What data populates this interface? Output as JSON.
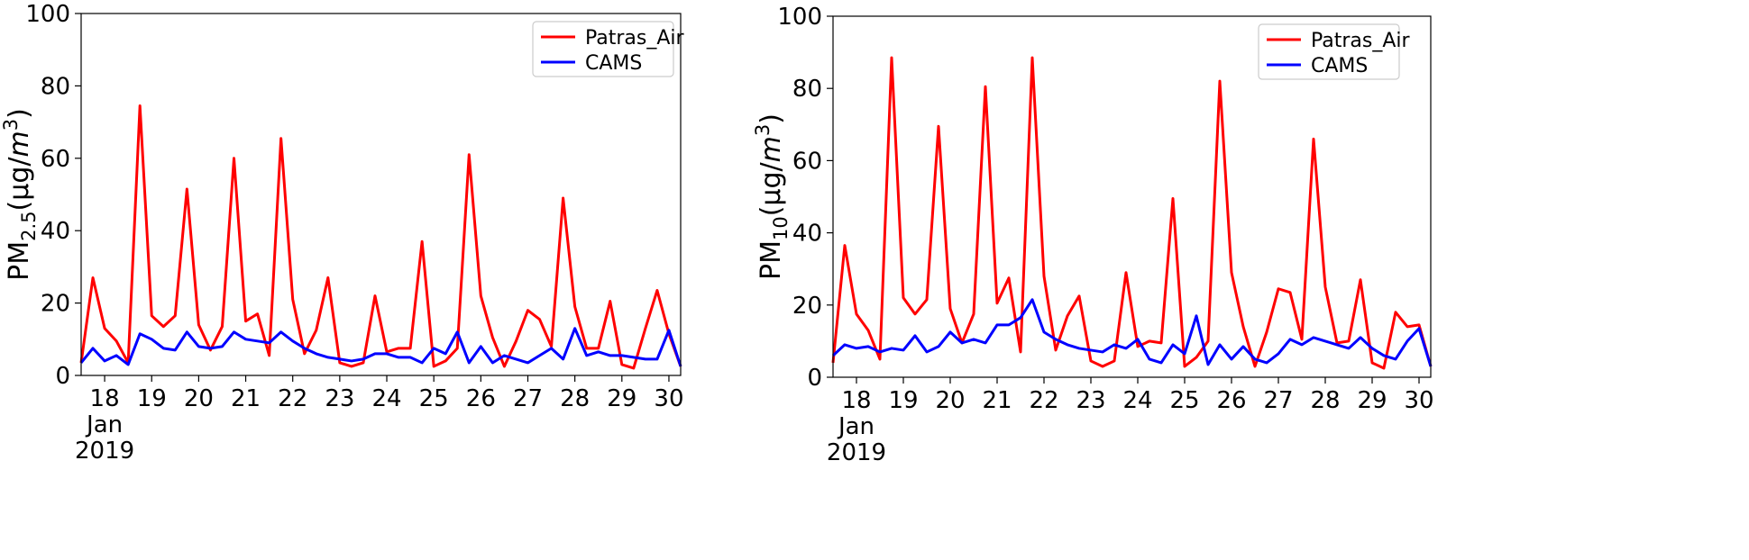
{
  "chart_data": [
    {
      "type": "line",
      "title": "",
      "ylabel": {
        "base": "PM",
        "sub": "2.5",
        "unit_open": "(μg/",
        "unit_var": "m",
        "unit_sup": "3",
        "unit_close": ")"
      },
      "xlabel": "",
      "ylim": [
        0,
        100
      ],
      "yticks": [
        0,
        20,
        40,
        60,
        80,
        100
      ],
      "xlim": [
        17.5,
        30.25
      ],
      "xticks": [
        {
          "x": 18,
          "label": "18",
          "extra": [
            "Jan",
            "2019"
          ]
        },
        {
          "x": 19,
          "label": "19"
        },
        {
          "x": 20,
          "label": "20"
        },
        {
          "x": 21,
          "label": "21"
        },
        {
          "x": 22,
          "label": "22"
        },
        {
          "x": 23,
          "label": "23"
        },
        {
          "x": 24,
          "label": "24"
        },
        {
          "x": 25,
          "label": "25"
        },
        {
          "x": 26,
          "label": "26"
        },
        {
          "x": 27,
          "label": "27"
        },
        {
          "x": 28,
          "label": "28"
        },
        {
          "x": 29,
          "label": "29"
        },
        {
          "x": 30,
          "label": "30"
        }
      ],
      "legend_position": "top-right",
      "grid": false,
      "series": [
        {
          "name": "Patras_Air",
          "color": "#ff0000",
          "points": [
            [
              17.5,
              3.5
            ],
            [
              17.75,
              27.0
            ],
            [
              18.0,
              13.0
            ],
            [
              18.25,
              9.5
            ],
            [
              18.5,
              3.5
            ],
            [
              18.75,
              74.5
            ],
            [
              19.0,
              16.5
            ],
            [
              19.25,
              13.5
            ],
            [
              19.5,
              16.5
            ],
            [
              19.75,
              51.5
            ],
            [
              20.0,
              14.0
            ],
            [
              20.25,
              7.0
            ],
            [
              20.5,
              13.5
            ],
            [
              20.75,
              60.0
            ],
            [
              21.0,
              15.0
            ],
            [
              21.25,
              17.0
            ],
            [
              21.5,
              5.5
            ],
            [
              21.75,
              65.5
            ],
            [
              22.0,
              21.0
            ],
            [
              22.25,
              6.0
            ],
            [
              22.5,
              12.5
            ],
            [
              22.75,
              27.0
            ],
            [
              23.0,
              3.5
            ],
            [
              23.25,
              2.5
            ],
            [
              23.5,
              3.5
            ],
            [
              23.75,
              22.0
            ],
            [
              24.0,
              6.5
            ],
            [
              24.25,
              7.5
            ],
            [
              24.5,
              7.5
            ],
            [
              24.75,
              37.0
            ],
            [
              25.0,
              2.5
            ],
            [
              25.25,
              4.0
            ],
            [
              25.5,
              7.5
            ],
            [
              25.75,
              61.0
            ],
            [
              26.0,
              22.0
            ],
            [
              26.25,
              10.5
            ],
            [
              26.5,
              2.5
            ],
            [
              26.75,
              9.5
            ],
            [
              27.0,
              18.0
            ],
            [
              27.25,
              15.5
            ],
            [
              27.5,
              8.0
            ],
            [
              27.75,
              49.0
            ],
            [
              28.0,
              19.0
            ],
            [
              28.25,
              7.5
            ],
            [
              28.5,
              7.5
            ],
            [
              28.75,
              20.5
            ],
            [
              29.0,
              3.0
            ],
            [
              29.25,
              2.0
            ],
            [
              29.5,
              13.0
            ],
            [
              29.75,
              23.5
            ],
            [
              30.0,
              11.5
            ],
            [
              30.25,
              2.5
            ]
          ]
        },
        {
          "name": "CAMS",
          "color": "#0000ff",
          "points": [
            [
              17.5,
              3.5
            ],
            [
              17.75,
              7.5
            ],
            [
              18.0,
              4.0
            ],
            [
              18.25,
              5.5
            ],
            [
              18.5,
              3.0
            ],
            [
              18.75,
              11.5
            ],
            [
              19.0,
              10.0
            ],
            [
              19.25,
              7.5
            ],
            [
              19.5,
              7.0
            ],
            [
              19.75,
              12.0
            ],
            [
              20.0,
              8.0
            ],
            [
              20.25,
              7.5
            ],
            [
              20.5,
              8.0
            ],
            [
              20.75,
              12.0
            ],
            [
              21.0,
              10.0
            ],
            [
              21.25,
              9.5
            ],
            [
              21.5,
              9.0
            ],
            [
              21.75,
              12.0
            ],
            [
              22.0,
              9.5
            ],
            [
              22.25,
              7.5
            ],
            [
              22.5,
              6.0
            ],
            [
              22.75,
              5.0
            ],
            [
              23.0,
              4.5
            ],
            [
              23.25,
              4.0
            ],
            [
              23.5,
              4.5
            ],
            [
              23.75,
              6.0
            ],
            [
              24.0,
              6.0
            ],
            [
              24.25,
              5.0
            ],
            [
              24.5,
              5.0
            ],
            [
              24.75,
              3.5
            ],
            [
              25.0,
              7.5
            ],
            [
              25.25,
              6.0
            ],
            [
              25.5,
              12.0
            ],
            [
              25.75,
              3.5
            ],
            [
              26.0,
              8.0
            ],
            [
              26.25,
              3.5
            ],
            [
              26.5,
              5.5
            ],
            [
              26.75,
              4.5
            ],
            [
              27.0,
              3.5
            ],
            [
              27.25,
              5.5
            ],
            [
              27.5,
              7.5
            ],
            [
              27.75,
              4.5
            ],
            [
              28.0,
              13.0
            ],
            [
              28.25,
              5.5
            ],
            [
              28.5,
              6.5
            ],
            [
              28.75,
              5.5
            ],
            [
              29.0,
              5.5
            ],
            [
              29.25,
              5.0
            ],
            [
              29.5,
              4.5
            ],
            [
              29.75,
              4.5
            ],
            [
              30.0,
              12.5
            ],
            [
              30.25,
              2.5
            ]
          ]
        }
      ]
    },
    {
      "type": "line",
      "title": "",
      "ylabel": {
        "base": "PM",
        "sub": "10",
        "unit_open": "(μg/",
        "unit_var": "m",
        "unit_sup": "3",
        "unit_close": ")"
      },
      "xlabel": "",
      "ylim": [
        0,
        100
      ],
      "yticks": [
        0,
        20,
        40,
        60,
        80,
        100
      ],
      "xlim": [
        17.5,
        30.25
      ],
      "xticks": [
        {
          "x": 18,
          "label": "18",
          "extra": [
            "Jan",
            "2019"
          ]
        },
        {
          "x": 19,
          "label": "19"
        },
        {
          "x": 20,
          "label": "20"
        },
        {
          "x": 21,
          "label": "21"
        },
        {
          "x": 22,
          "label": "22"
        },
        {
          "x": 23,
          "label": "23"
        },
        {
          "x": 24,
          "label": "24"
        },
        {
          "x": 25,
          "label": "25"
        },
        {
          "x": 26,
          "label": "26"
        },
        {
          "x": 27,
          "label": "27"
        },
        {
          "x": 28,
          "label": "28"
        },
        {
          "x": 29,
          "label": "29"
        },
        {
          "x": 30,
          "label": "30"
        }
      ],
      "legend_position": "top-right",
      "grid": false,
      "series": [
        {
          "name": "Patras_Air",
          "color": "#ff0000",
          "points": [
            [
              17.5,
              4.0
            ],
            [
              17.75,
              36.5
            ],
            [
              18.0,
              17.5
            ],
            [
              18.25,
              13.0
            ],
            [
              18.5,
              5.0
            ],
            [
              18.75,
              88.5
            ],
            [
              19.0,
              22.0
            ],
            [
              19.25,
              17.5
            ],
            [
              19.5,
              21.5
            ],
            [
              19.75,
              69.5
            ],
            [
              20.0,
              19.0
            ],
            [
              20.25,
              9.5
            ],
            [
              20.5,
              17.5
            ],
            [
              20.75,
              80.5
            ],
            [
              21.0,
              20.5
            ],
            [
              21.25,
              27.5
            ],
            [
              21.5,
              7.0
            ],
            [
              21.75,
              88.5
            ],
            [
              22.0,
              28.0
            ],
            [
              22.25,
              7.5
            ],
            [
              22.5,
              17.0
            ],
            [
              22.75,
              22.5
            ],
            [
              23.0,
              4.5
            ],
            [
              23.25,
              3.0
            ],
            [
              23.5,
              4.5
            ],
            [
              23.75,
              29.0
            ],
            [
              24.0,
              8.5
            ],
            [
              24.25,
              10.0
            ],
            [
              24.5,
              9.5
            ],
            [
              24.75,
              49.5
            ],
            [
              25.0,
              3.0
            ],
            [
              25.25,
              5.5
            ],
            [
              25.5,
              10.0
            ],
            [
              25.75,
              82.0
            ],
            [
              26.0,
              29.0
            ],
            [
              26.25,
              14.0
            ],
            [
              26.5,
              3.0
            ],
            [
              26.75,
              12.5
            ],
            [
              27.0,
              24.5
            ],
            [
              27.25,
              23.5
            ],
            [
              27.5,
              10.5
            ],
            [
              27.75,
              66.0
            ],
            [
              28.0,
              25.0
            ],
            [
              28.25,
              9.5
            ],
            [
              28.5,
              10.0
            ],
            [
              28.75,
              27.0
            ],
            [
              29.0,
              4.0
            ],
            [
              29.25,
              2.5
            ],
            [
              29.5,
              18.0
            ],
            [
              29.75,
              14.0
            ],
            [
              30.0,
              14.5
            ],
            [
              30.25,
              3.0
            ]
          ]
        },
        {
          "name": "CAMS",
          "color": "#0000ff",
          "points": [
            [
              17.5,
              6.0
            ],
            [
              17.75,
              9.0
            ],
            [
              18.0,
              8.0
            ],
            [
              18.25,
              8.5
            ],
            [
              18.5,
              7.0
            ],
            [
              18.75,
              8.0
            ],
            [
              19.0,
              7.5
            ],
            [
              19.25,
              11.5
            ],
            [
              19.5,
              7.0
            ],
            [
              19.75,
              8.5
            ],
            [
              20.0,
              12.5
            ],
            [
              20.25,
              9.5
            ],
            [
              20.5,
              10.5
            ],
            [
              20.75,
              9.5
            ],
            [
              21.0,
              14.5
            ],
            [
              21.25,
              14.5
            ],
            [
              21.5,
              16.5
            ],
            [
              21.75,
              21.5
            ],
            [
              22.0,
              12.5
            ],
            [
              22.25,
              10.5
            ],
            [
              22.5,
              9.0
            ],
            [
              22.75,
              8.0
            ],
            [
              23.0,
              7.5
            ],
            [
              23.25,
              7.0
            ],
            [
              23.5,
              9.0
            ],
            [
              23.75,
              8.0
            ],
            [
              24.0,
              10.5
            ],
            [
              24.25,
              5.0
            ],
            [
              24.5,
              4.0
            ],
            [
              24.75,
              9.0
            ],
            [
              25.0,
              6.5
            ],
            [
              25.25,
              17.0
            ],
            [
              25.5,
              3.5
            ],
            [
              25.75,
              9.0
            ],
            [
              26.0,
              5.0
            ],
            [
              26.25,
              8.5
            ],
            [
              26.5,
              5.0
            ],
            [
              26.75,
              4.0
            ],
            [
              27.0,
              6.5
            ],
            [
              27.25,
              10.5
            ],
            [
              27.5,
              9.0
            ],
            [
              27.75,
              11.0
            ],
            [
              28.0,
              10.0
            ],
            [
              28.25,
              9.0
            ],
            [
              28.5,
              8.0
            ],
            [
              28.75,
              11.0
            ],
            [
              29.0,
              8.0
            ],
            [
              29.25,
              6.0
            ],
            [
              29.5,
              5.0
            ],
            [
              29.75,
              10.0
            ],
            [
              30.0,
              13.5
            ],
            [
              30.25,
              3.0
            ]
          ]
        }
      ]
    }
  ]
}
